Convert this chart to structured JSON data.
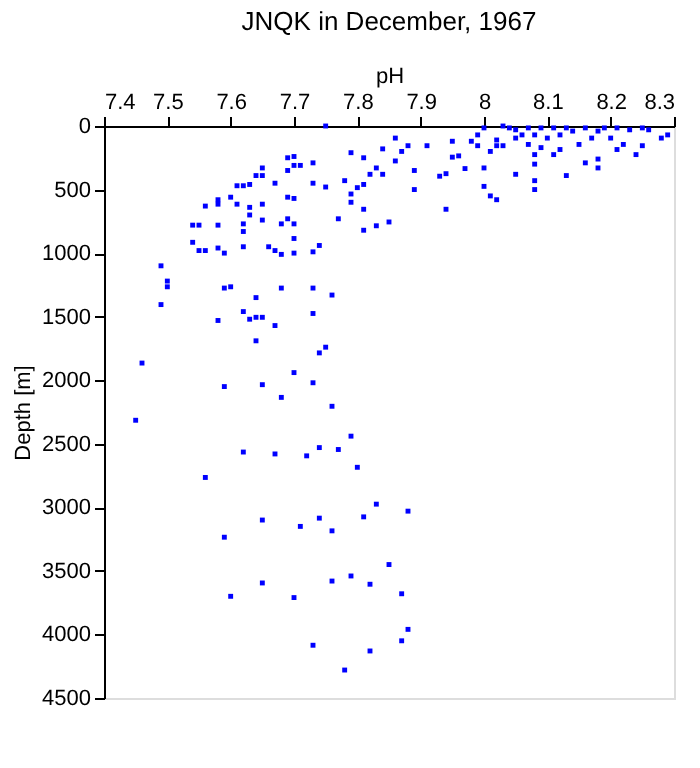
{
  "chart_data": {
    "type": "scatter",
    "title": "JNQK in December, 1967",
    "xlabel": "pH",
    "ylabel": "Depth [m]",
    "xlim": [
      7.4,
      8.3
    ],
    "xticks": [
      7.4,
      7.5,
      7.6,
      7.7,
      7.8,
      7.9,
      8,
      8.1,
      8.2,
      8.3
    ],
    "ylim": [
      4500,
      0
    ],
    "yticks": [
      0,
      500,
      1000,
      1500,
      2000,
      2500,
      3000,
      3500,
      4000,
      4500
    ],
    "grid": false,
    "marker": "square",
    "series": [
      {
        "color": "#0000ff",
        "x": [
          7.75,
          7.49,
          7.5,
          7.54,
          7.55,
          7.54,
          7.55,
          7.56,
          7.56,
          7.58,
          7.58,
          7.58,
          7.58,
          7.59,
          7.6,
          7.61,
          7.61,
          7.62,
          7.62,
          7.62,
          7.62,
          7.63,
          7.63,
          7.63,
          7.64,
          7.65,
          7.65,
          7.65,
          7.65,
          7.66,
          7.67,
          7.67,
          7.68,
          7.68,
          7.69,
          7.69,
          7.69,
          7.7,
          7.71,
          7.69,
          7.7,
          7.7,
          7.7,
          7.7,
          7.7,
          7.73,
          7.73,
          7.73,
          7.74,
          7.75,
          7.77,
          7.78,
          7.79,
          7.79,
          7.79,
          7.8,
          7.81,
          7.81,
          7.81,
          7.81,
          7.82,
          7.83,
          7.83,
          7.84,
          7.84,
          7.85,
          7.86,
          7.86,
          7.87,
          7.88,
          7.89,
          7.89,
          7.91,
          7.93,
          7.94,
          7.94,
          7.95,
          7.95,
          7.96,
          7.97,
          7.98,
          7.99,
          7.99,
          8.0,
          8.0,
          8.0,
          8.01,
          8.01,
          8.02,
          8.02,
          8.02,
          8.03,
          8.03,
          8.04,
          8.05,
          8.05,
          8.05,
          8.06,
          8.07,
          8.07,
          8.08,
          8.08,
          8.08,
          8.08,
          8.08,
          8.09,
          8.09,
          8.1,
          8.11,
          8.11,
          8.12,
          8.12,
          8.13,
          8.13,
          8.14,
          8.15,
          8.16,
          8.16,
          8.17,
          8.18,
          8.18,
          8.18,
          8.19,
          8.2,
          8.21,
          8.21,
          8.22,
          8.23,
          8.24,
          8.25,
          8.25,
          8.26,
          8.28,
          8.29,
          7.5,
          7.59,
          7.6,
          7.68,
          7.73,
          7.76,
          7.64,
          7.49,
          7.62,
          7.58,
          7.63,
          7.64,
          7.65,
          7.73,
          7.67,
          7.64,
          7.74,
          7.75,
          7.46,
          7.7,
          7.59,
          7.65,
          7.73,
          7.68,
          7.76,
          7.45,
          7.79,
          7.62,
          7.67,
          7.72,
          7.74,
          7.77,
          7.8,
          7.56,
          7.83,
          7.88,
          7.81,
          7.74,
          7.65,
          7.71,
          7.76,
          7.59,
          7.85,
          7.79,
          7.65,
          7.76,
          7.82,
          7.87,
          7.6,
          7.7,
          7.88,
          7.87,
          7.73,
          7.82,
          7.78
        ],
        "values": [
          0,
          1100,
          1220,
          780,
          780,
          915,
          980,
          980,
          630,
          580,
          615,
          780,
          960,
          1000,
          560,
          470,
          615,
          470,
          770,
          830,
          950,
          460,
          640,
          700,
          390,
          330,
          390,
          615,
          740,
          950,
          450,
          980,
          770,
          1010,
          730,
          250,
          350,
          310,
          310,
          560,
          570,
          770,
          885,
          1000,
          240,
          290,
          450,
          990,
          940,
          480,
          730,
          430,
          210,
          535,
          600,
          485,
          250,
          460,
          655,
          820,
          380,
          330,
          785,
          380,
          180,
          755,
          95,
          275,
          200,
          155,
          350,
          500,
          155,
          395,
          375,
          655,
          120,
          245,
          235,
          335,
          120,
          70,
          155,
          330,
          475,
          15,
          200,
          550,
          580,
          110,
          155,
          155,
          0,
          15,
          30,
          380,
          95,
          70,
          15,
          145,
          70,
          225,
          300,
          430,
          500,
          15,
          170,
          95,
          15,
          225,
          70,
          185,
          15,
          390,
          40,
          145,
          15,
          290,
          95,
          260,
          330,
          40,
          15,
          95,
          15,
          185,
          145,
          30,
          225,
          15,
          155,
          30,
          95,
          70,
          1265,
          1275,
          1265,
          1275,
          1275,
          1330,
          1350,
          1405,
          1460,
          1530,
          1520,
          1505,
          1505,
          1475,
          1570,
          1690,
          1785,
          1740,
          1865,
          1940,
          2050,
          2035,
          2020,
          2135,
          2205,
          2315,
          2440,
          2565,
          2580,
          2595,
          2530,
          2545,
          2685,
          2765,
          2975,
          3030,
          3075,
          3085,
          3100,
          3150,
          3185,
          3235,
          3450,
          3540,
          3595,
          3580,
          3605,
          3680,
          3700,
          3710,
          3960,
          4050,
          4085,
          4130,
          4280
        ]
      }
    ]
  }
}
